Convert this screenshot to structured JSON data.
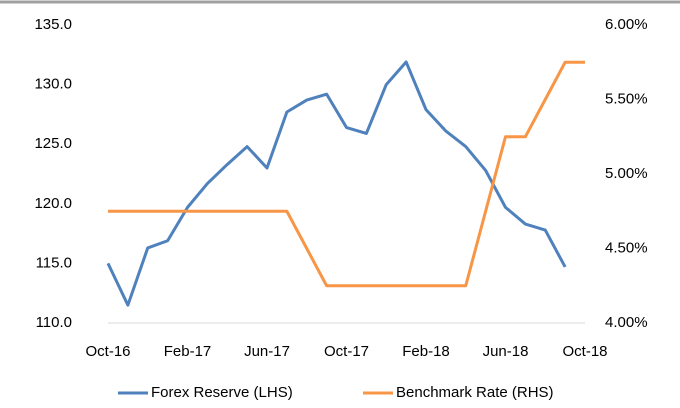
{
  "chart_data": {
    "type": "line",
    "categories": [
      "Oct-16",
      null,
      null,
      null,
      "Feb-17",
      null,
      null,
      null,
      "Jun-17",
      null,
      null,
      null,
      "Oct-17",
      null,
      null,
      null,
      "Feb-18",
      null,
      null,
      null,
      "Jun-18",
      null,
      null,
      null,
      "Oct-18"
    ],
    "series": [
      {
        "name": "Forex Reserve (LHS)",
        "color": "#4f81bd",
        "axis": "y",
        "values": [
          115.0,
          111.5,
          116.3,
          116.9,
          119.7,
          121.7,
          123.3,
          124.8,
          123.0,
          127.7,
          128.7,
          129.2,
          126.4,
          125.9,
          130.0,
          131.9,
          127.9,
          126.1,
          124.8,
          122.8,
          119.7,
          118.3,
          117.8,
          114.7,
          null
        ]
      },
      {
        "name": "Benchmark Rate (RHS)",
        "color": "#f79646",
        "axis": "y2",
        "values": [
          4.75,
          4.75,
          4.75,
          4.75,
          4.75,
          4.75,
          4.75,
          4.75,
          4.75,
          4.75,
          4.5,
          4.25,
          4.25,
          4.25,
          4.25,
          4.25,
          4.25,
          4.25,
          4.25,
          4.75,
          5.25,
          5.25,
          5.5,
          5.75,
          5.75
        ]
      }
    ],
    "ylim": [
      110,
      135
    ],
    "yticks": [
      {
        "value": 110,
        "label": "110.0"
      },
      {
        "value": 115,
        "label": "115.0"
      },
      {
        "value": 120,
        "label": "120.0"
      },
      {
        "value": 125,
        "label": "125.0"
      },
      {
        "value": 130,
        "label": "130.0"
      },
      {
        "value": 135,
        "label": "135.0"
      }
    ],
    "y2lim": [
      4,
      6
    ],
    "y2ticks": [
      {
        "value": 4,
        "label": "4.00%"
      },
      {
        "value": 4.5,
        "label": "4.50%"
      },
      {
        "value": 5,
        "label": "5.00%"
      },
      {
        "value": 5.5,
        "label": "5.50%"
      },
      {
        "value": 6,
        "label": "6.00%"
      }
    ],
    "grid": false,
    "legend": "bottom"
  }
}
